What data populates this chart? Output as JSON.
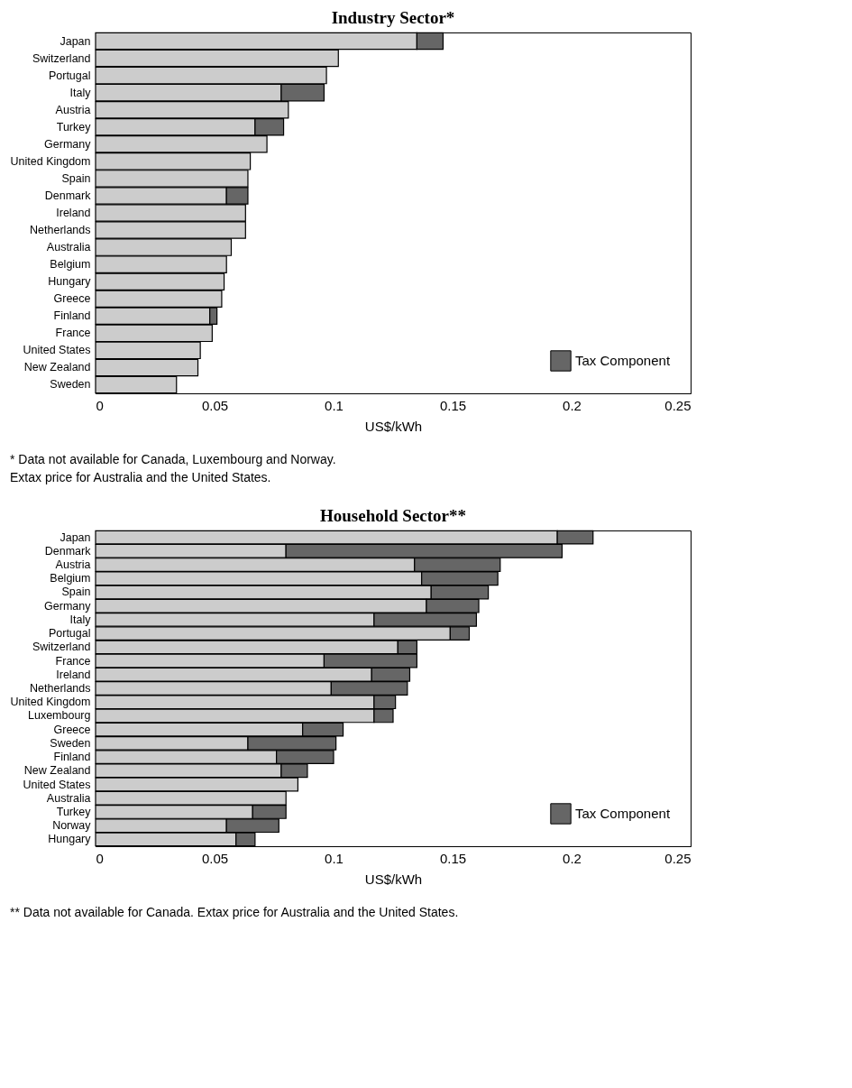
{
  "chart_data": [
    {
      "type": "bar",
      "orientation": "horizontal",
      "stacked": true,
      "title": "Industry Sector*",
      "xlabel": "US$/kWh",
      "categories": [
        "Japan",
        "Switzerland",
        "Portugal",
        "Italy",
        "Austria",
        "Turkey",
        "Germany",
        "United Kingdom",
        "Spain",
        "Denmark",
        "Ireland",
        "Netherlands",
        "Australia",
        "Belgium",
        "Hungary",
        "Greece",
        "Finland",
        "France",
        "United States",
        "New Zealand",
        "Sweden"
      ],
      "series": [
        {
          "color": "#cccccc",
          "values": [
            0.135,
            0.102,
            0.097,
            0.078,
            0.081,
            0.067,
            0.072,
            0.065,
            0.064,
            0.055,
            0.063,
            0.063,
            0.057,
            0.055,
            0.054,
            0.053,
            0.048,
            0.049,
            0.044,
            0.043,
            0.034
          ]
        },
        {
          "name": "Tax Component",
          "color": "#666666",
          "values": [
            0.011,
            null,
            null,
            0.018,
            null,
            0.012,
            null,
            null,
            null,
            0.009,
            null,
            null,
            null,
            null,
            null,
            null,
            0.003,
            null,
            null,
            null,
            null
          ]
        }
      ],
      "xlim": [
        0,
        0.25
      ],
      "xticks": [
        0,
        0.05,
        0.1,
        0.15,
        0.2,
        0.25
      ],
      "grid": false,
      "legend": "bottom right",
      "annotations": [
        "* Data not available for Canada, Luxembourg and Norway.",
        "  Extax price for Australia and the United States."
      ]
    },
    {
      "type": "bar",
      "orientation": "horizontal",
      "stacked": true,
      "title": "Household Sector**",
      "xlabel": "US$/kWh",
      "categories": [
        "Japan",
        "Denmark",
        "Austria",
        "Belgium",
        "Spain",
        "Germany",
        "Italy",
        "Portugal",
        "Switzerland",
        "France",
        "Ireland",
        "Netherlands",
        "United Kingdom",
        "Luxembourg",
        "Greece",
        "Sweden",
        "Finland",
        "New Zealand",
        "United States",
        "Australia",
        "Turkey",
        "Norway",
        "Hungary"
      ],
      "series": [
        {
          "color": "#cccccc",
          "values": [
            0.194,
            0.08,
            0.134,
            0.137,
            0.141,
            0.139,
            0.117,
            0.149,
            0.127,
            0.096,
            0.116,
            0.099,
            0.117,
            0.117,
            0.087,
            0.064,
            0.076,
            0.078,
            0.085,
            0.08,
            0.066,
            0.055,
            0.059
          ]
        },
        {
          "name": "Tax Component",
          "color": "#666666",
          "values": [
            0.015,
            0.116,
            0.036,
            0.032,
            0.024,
            0.022,
            0.043,
            0.008,
            0.008,
            0.039,
            0.016,
            0.032,
            0.009,
            0.008,
            0.017,
            0.037,
            0.024,
            0.011,
            null,
            null,
            0.014,
            0.022,
            0.008
          ]
        }
      ],
      "xlim": [
        0,
        0.25
      ],
      "xticks": [
        0,
        0.05,
        0.1,
        0.15,
        0.2,
        0.25
      ],
      "grid": false,
      "legend": "bottom right",
      "annotations": [
        "** Data not available for Canada.  Extax price for Australia and the United States."
      ]
    }
  ]
}
